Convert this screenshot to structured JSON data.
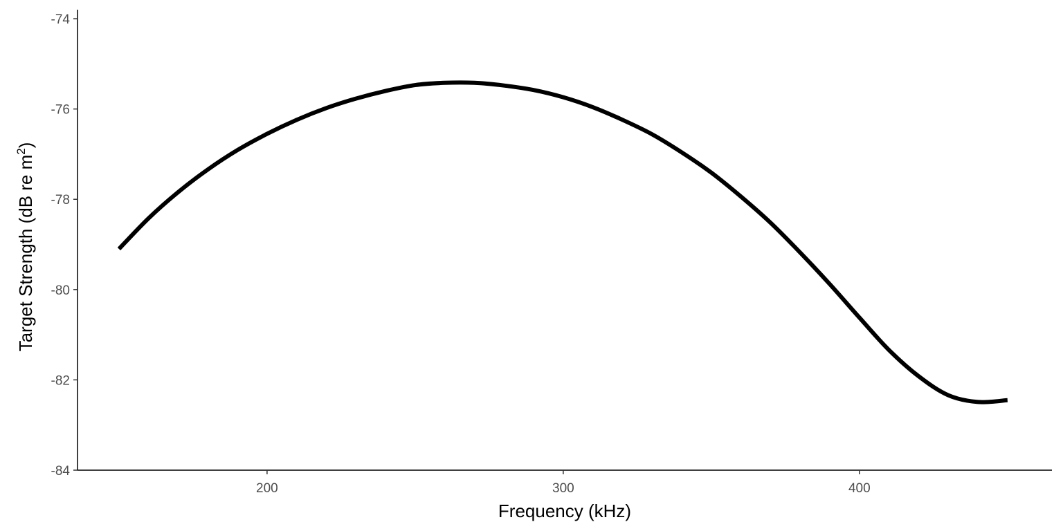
{
  "chart_data": {
    "type": "line",
    "title": "",
    "xlabel": "Frequency (kHz)",
    "ylabel": {
      "prefix": "Target Strength (dB re m",
      "superscript": "2",
      "suffix": ")"
    },
    "xlim": [
      136,
      465
    ],
    "ylim": [
      -84,
      -73.8
    ],
    "x_ticks": [
      200,
      300,
      400
    ],
    "x_tick_labels": [
      "200",
      "300",
      "400"
    ],
    "y_ticks": [
      -84,
      -82,
      -80,
      -78,
      -76,
      -74
    ],
    "y_tick_labels": [
      "-84",
      "-82",
      "-80",
      "-78",
      "-76",
      "-74"
    ],
    "grid": false,
    "legend": "none",
    "series": [
      {
        "color": "#000000",
        "x": [
          150,
          160,
          170,
          180,
          190,
          200,
          210,
          220,
          230,
          240,
          250,
          260,
          270,
          280,
          290,
          300,
          310,
          320,
          330,
          340,
          350,
          360,
          370,
          380,
          390,
          400,
          410,
          420,
          430,
          440,
          450
        ],
        "y": [
          -79.1,
          -78.42,
          -77.84,
          -77.34,
          -76.91,
          -76.55,
          -76.24,
          -75.98,
          -75.77,
          -75.6,
          -75.47,
          -75.42,
          -75.42,
          -75.48,
          -75.58,
          -75.74,
          -75.96,
          -76.24,
          -76.56,
          -76.96,
          -77.41,
          -77.94,
          -78.52,
          -79.18,
          -79.88,
          -80.62,
          -81.34,
          -81.92,
          -82.34,
          -82.49,
          -82.45
        ]
      }
    ]
  }
}
